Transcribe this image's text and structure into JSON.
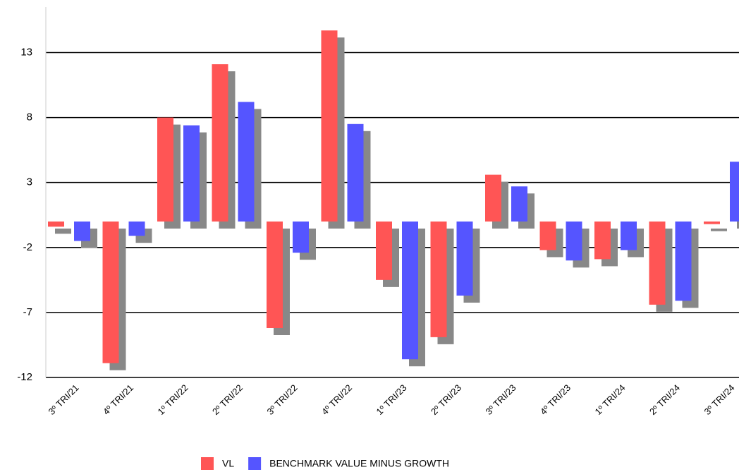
{
  "chart_data": {
    "type": "bar",
    "categories": [
      "3º TRI/21",
      "4º TRI/21",
      "1º TRI/22",
      "2º TRI/22",
      "3º TRI/22",
      "4º TRI/22",
      "1º TRI/23",
      "2º TRI/23",
      "3º TRI/23",
      "4º TRI/23",
      "1º TRI/24",
      "2º TRI/24",
      "3º TRI/24"
    ],
    "series": [
      {
        "name": "VL",
        "color": "#ff5555",
        "values": [
          -0.4,
          -10.9,
          8.0,
          12.1,
          -8.2,
          14.7,
          -4.5,
          -8.9,
          3.6,
          -2.2,
          -2.9,
          -6.4,
          -0.2
        ]
      },
      {
        "name": "BENCHMARK VALUE MINUS GROWTH",
        "color": "#5555ff",
        "values": [
          -1.5,
          -1.1,
          7.4,
          9.2,
          -2.4,
          7.5,
          -10.6,
          -5.7,
          2.7,
          -3.0,
          -2.2,
          -6.1,
          4.6
        ]
      }
    ],
    "ylim": [
      -12,
      16.5
    ],
    "yticks": [
      -12,
      -7,
      -2,
      3,
      8,
      13
    ],
    "grid": true,
    "legend": "bottom"
  }
}
